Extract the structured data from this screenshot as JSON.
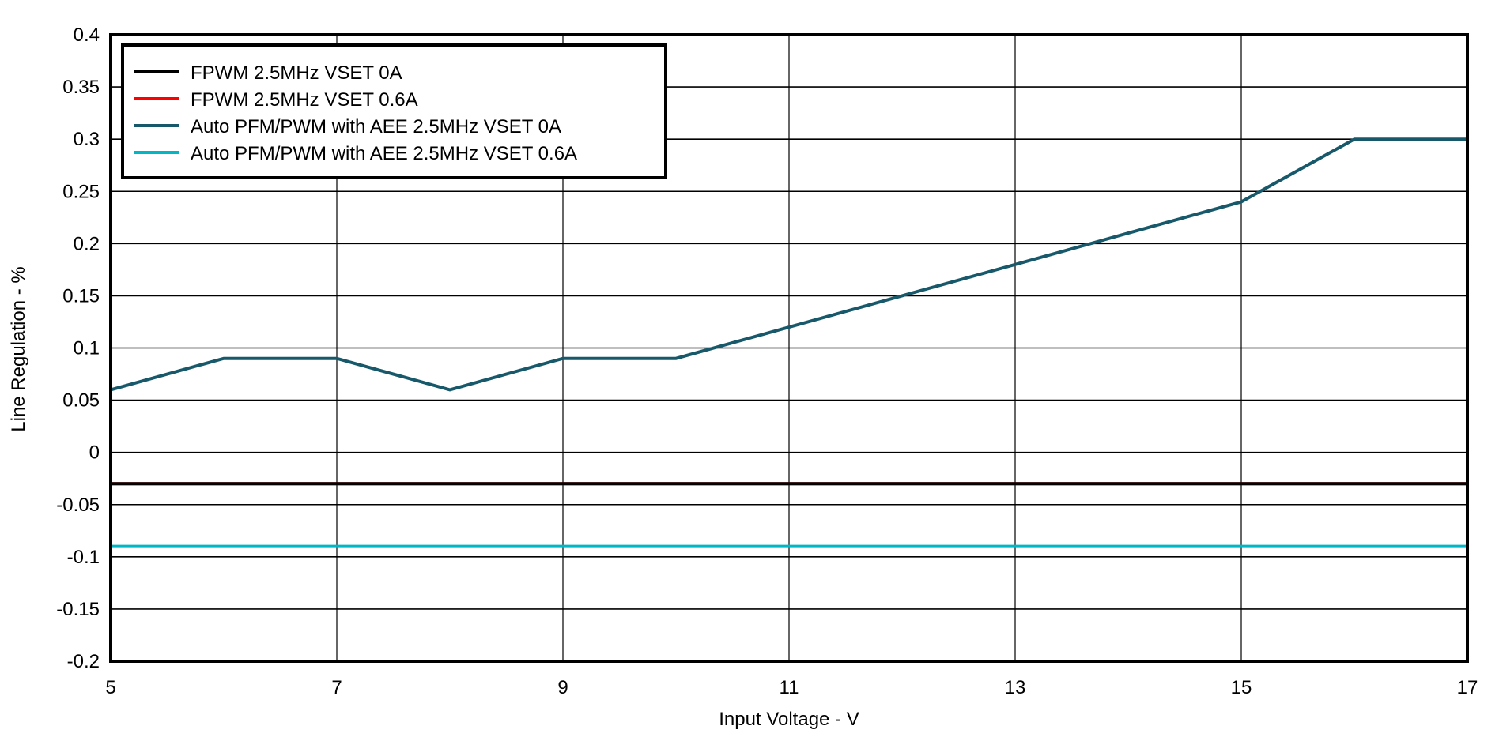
{
  "chart_data": {
    "type": "line",
    "title": "",
    "xlabel": "Input Voltage - V",
    "ylabel": "Line Regulation - %",
    "xlim": [
      5,
      17
    ],
    "ylim": [
      -0.2,
      0.4
    ],
    "x_ticks": [
      5,
      7,
      9,
      11,
      13,
      15,
      17
    ],
    "x_tick_labels": [
      "5",
      "7",
      "9",
      "11",
      "13",
      "15",
      "17"
    ],
    "y_ticks": [
      0.4,
      0.35,
      0.3,
      0.25,
      0.2,
      0.15,
      0.1,
      0.05,
      0,
      -0.05,
      -0.1,
      -0.15,
      -0.2
    ],
    "y_tick_labels": [
      "0.4",
      "0.35",
      "0.3",
      "0.25",
      "0.2",
      "0.15",
      "0.1",
      "0.05",
      "0",
      "-0.05",
      "-0.1",
      "-0.15",
      "-0.2"
    ],
    "grid": true,
    "legend_position": "upper-left (inside)",
    "x": [
      5,
      6,
      7,
      8,
      9,
      10,
      11,
      12,
      13,
      14,
      15,
      16,
      17
    ],
    "series": [
      {
        "name": "FPWM 2.5MHz VSET 0A",
        "color": "#000000",
        "values": [
          -0.03,
          -0.03,
          -0.03,
          -0.03,
          -0.03,
          -0.03,
          -0.03,
          -0.03,
          -0.03,
          -0.03,
          -0.03,
          -0.03,
          -0.03
        ]
      },
      {
        "name": "FPWM 2.5MHz VSET 0.6A",
        "color": "#ff0000",
        "values": [
          -0.03,
          -0.03,
          -0.03,
          -0.03,
          -0.03,
          -0.03,
          -0.03,
          -0.03,
          -0.03,
          -0.03,
          -0.03,
          -0.03,
          -0.03
        ]
      },
      {
        "name": "Auto PFM/PWM with AEE 2.5MHz VSET 0A",
        "color": "#17596a",
        "values": [
          0.06,
          0.09,
          0.09,
          0.06,
          0.09,
          0.09,
          0.12,
          0.15,
          0.18,
          0.21,
          0.24,
          0.3,
          0.3
        ]
      },
      {
        "name": "Auto PFM/PWM with AEE 2.5MHz VSET 0.6A",
        "color": "#00b7c8",
        "values": [
          -0.09,
          -0.09,
          -0.09,
          -0.09,
          -0.09,
          -0.09,
          -0.09,
          -0.09,
          -0.09,
          -0.09,
          -0.09,
          -0.09,
          -0.09
        ]
      }
    ]
  },
  "legend": {
    "items": [
      {
        "label": "FPWM 2.5MHz VSET 0A",
        "color": "#000000"
      },
      {
        "label": "FPWM 2.5MHz VSET 0.6A",
        "color": "#ff0000"
      },
      {
        "label": "Auto PFM/PWM with AEE 2.5MHz VSET 0A",
        "color": "#17596a"
      },
      {
        "label": "Auto PFM/PWM with AEE 2.5MHz VSET 0.6A",
        "color": "#00b7c8"
      }
    ]
  },
  "axes": {
    "x_title": "Input Voltage - V",
    "y_title": "Line Regulation - %"
  }
}
